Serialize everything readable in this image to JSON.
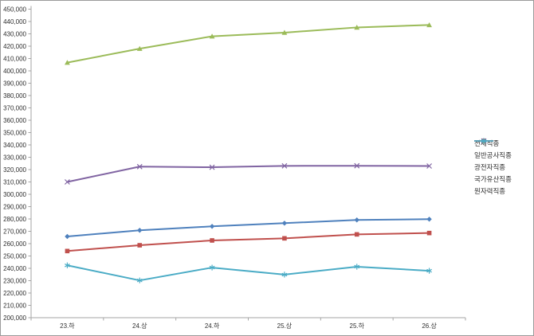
{
  "chart_data": {
    "type": "line",
    "title": "",
    "xlabel": "",
    "ylabel": "",
    "grid": "none",
    "legend_position": "right",
    "y_min": 200000,
    "y_max": 450000,
    "y_step": 10000,
    "y_tick_format": "#,##0",
    "categories": [
      "23.하",
      "24.상",
      "24.하",
      "25.상",
      "25.하",
      "26.상"
    ],
    "series": [
      {
        "name": "전체직종",
        "color": "#4F81BD",
        "marker": "diamond",
        "values": [
          265800,
          270800,
          274000,
          276600,
          279200,
          279800
        ]
      },
      {
        "name": "일반공사직종",
        "color": "#C0504D",
        "marker": "square",
        "values": [
          254000,
          258700,
          262600,
          264300,
          267500,
          268600
        ]
      },
      {
        "name": "광전자직종",
        "color": "#9BBB59",
        "marker": "triangle",
        "values": [
          406700,
          418000,
          428000,
          431000,
          435200,
          437200
        ]
      },
      {
        "name": "국가유산직종",
        "color": "#8064A2",
        "marker": "x",
        "values": [
          310000,
          322400,
          321900,
          323000,
          323100,
          322900
        ]
      },
      {
        "name": "원자력직종",
        "color": "#4BACC6",
        "marker": "asterisk",
        "values": [
          242400,
          230200,
          240600,
          234900,
          241300,
          238000
        ]
      }
    ]
  },
  "style": {
    "axis_line_color": "#A6A6A6",
    "tick_color": "#A6A6A6",
    "tick_label_color": "#2e2e2e",
    "plot_background": "#FFFFFF"
  }
}
